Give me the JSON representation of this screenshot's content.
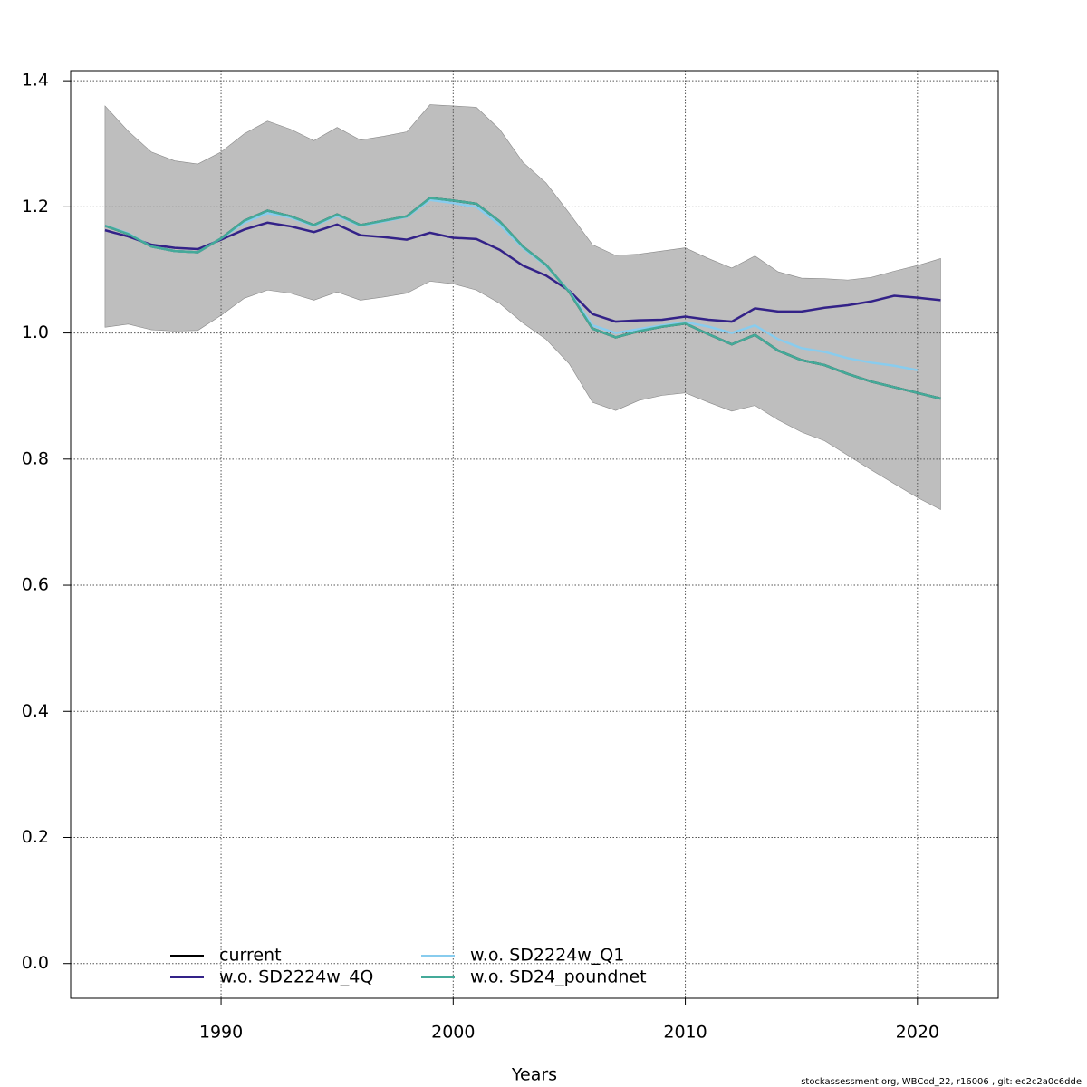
{
  "chart_data": {
    "type": "line",
    "x": [
      1985,
      1986,
      1987,
      1988,
      1989,
      1990,
      1991,
      1992,
      1993,
      1994,
      1995,
      1996,
      1997,
      1998,
      1999,
      2000,
      2001,
      2002,
      2003,
      2004,
      2005,
      2006,
      2007,
      2008,
      2009,
      2010,
      2011,
      2012,
      2013,
      2014,
      2015,
      2016,
      2017,
      2018,
      2019,
      2020,
      2021
    ],
    "band": {
      "color": "#bebebe",
      "upper": [
        1.36,
        1.32,
        1.287,
        1.273,
        1.268,
        1.287,
        1.316,
        1.336,
        1.323,
        1.305,
        1.326,
        1.306,
        1.312,
        1.319,
        1.362,
        1.36,
        1.358,
        1.323,
        1.271,
        1.238,
        1.19,
        1.14,
        1.123,
        1.125,
        1.13,
        1.135,
        1.118,
        1.103,
        1.122,
        1.097,
        1.087,
        1.086,
        1.084,
        1.088,
        1.098,
        1.107,
        1.118
      ],
      "lower": [
        1.009,
        1.014,
        1.005,
        1.003,
        1.004,
        1.028,
        1.055,
        1.068,
        1.063,
        1.052,
        1.065,
        1.052,
        1.057,
        1.063,
        1.082,
        1.078,
        1.068,
        1.047,
        1.016,
        0.99,
        0.951,
        0.89,
        0.877,
        0.893,
        0.901,
        0.905,
        0.89,
        0.876,
        0.885,
        0.862,
        0.843,
        0.829,
        0.806,
        0.783,
        0.761,
        0.739,
        0.72
      ]
    },
    "series": [
      {
        "name": "current",
        "color": "#000000",
        "values": [
          1.17,
          1.157,
          1.137,
          1.13,
          1.128,
          1.15,
          1.178,
          1.194,
          1.185,
          1.171,
          1.188,
          1.171,
          1.178,
          1.185,
          1.214,
          1.21,
          1.205,
          1.177,
          1.137,
          1.108,
          1.065,
          1.007,
          0.993,
          1.003,
          1.01,
          1.015,
          0.998,
          0.982,
          0.997,
          0.972,
          0.957,
          0.949,
          0.935,
          0.923,
          0.914,
          0.905,
          0.896
        ]
      },
      {
        "name": "w.o. SD2224w_4Q",
        "color": "#332288",
        "values": [
          1.163,
          1.153,
          1.14,
          1.135,
          1.133,
          1.148,
          1.164,
          1.175,
          1.169,
          1.16,
          1.172,
          1.155,
          1.152,
          1.148,
          1.159,
          1.151,
          1.149,
          1.132,
          1.107,
          1.091,
          1.067,
          1.03,
          1.018,
          1.02,
          1.021,
          1.026,
          1.021,
          1.018,
          1.039,
          1.034,
          1.034,
          1.04,
          1.044,
          1.05,
          1.059,
          1.056,
          1.052
        ]
      },
      {
        "name": "w.o. SD2224w_Q1",
        "color": "#88ccee",
        "values": [
          1.17,
          1.158,
          1.137,
          1.13,
          1.128,
          1.15,
          1.175,
          1.19,
          1.183,
          1.17,
          1.186,
          1.17,
          1.177,
          1.184,
          1.211,
          1.206,
          1.2,
          1.172,
          1.135,
          1.107,
          1.066,
          1.012,
          1.0,
          1.006,
          1.012,
          1.017,
          1.01,
          1.0,
          1.012,
          0.99,
          0.976,
          0.97,
          0.96,
          0.953,
          0.948,
          0.941,
          null
        ]
      },
      {
        "name": "w.o. SD24_poundnet",
        "color": "#44aa99",
        "values": [
          1.17,
          1.157,
          1.137,
          1.13,
          1.128,
          1.15,
          1.178,
          1.194,
          1.185,
          1.171,
          1.188,
          1.171,
          1.178,
          1.185,
          1.214,
          1.21,
          1.205,
          1.177,
          1.137,
          1.108,
          1.065,
          1.007,
          0.993,
          1.003,
          1.01,
          1.015,
          0.998,
          0.982,
          0.997,
          0.972,
          0.957,
          0.949,
          0.935,
          0.923,
          0.914,
          0.905,
          0.896
        ]
      }
    ],
    "xlabel": "Years",
    "xlim": [
      1983.52,
      2023.48
    ],
    "xticks": [
      1990,
      2000,
      2010,
      2020
    ],
    "ylim": [
      -0.055,
      1.416
    ],
    "yticks": [
      {
        "value": 0,
        "label": "0.0"
      },
      0.2,
      0.4,
      0.6,
      0.8,
      {
        "value": 1,
        "label": "1.0"
      },
      1.2,
      1.4
    ],
    "grid": true,
    "legend": "bottom",
    "footnote": "stockassessment.org, WBCod_22, r16006 , git: ec2c2a0c6dde"
  }
}
